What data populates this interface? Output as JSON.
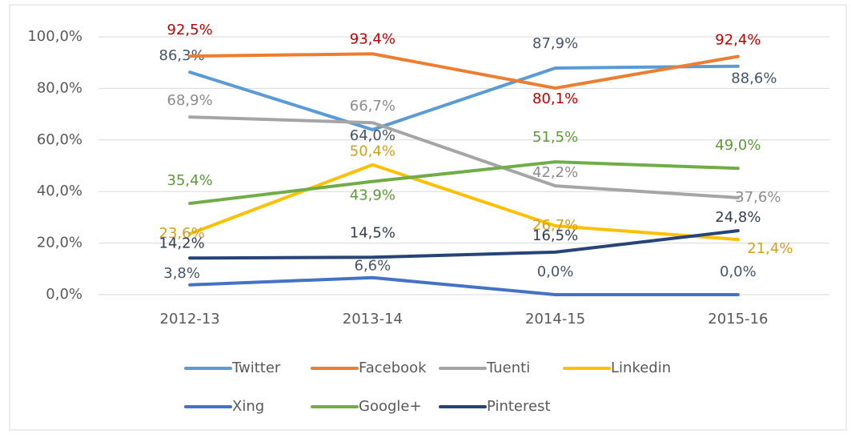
{
  "chart_data": {
    "type": "line",
    "categories": [
      "2012-13",
      "2013-14",
      "2014-15",
      "2015-16"
    ],
    "ylim": [
      0,
      100
    ],
    "yticks": [
      {
        "value": 0,
        "label": "0,0%"
      },
      {
        "value": 20,
        "label": "20,0%"
      },
      {
        "value": 40,
        "label": "40,0%"
      },
      {
        "value": 60,
        "label": "60,0%"
      },
      {
        "value": 80,
        "label": "80,0%"
      },
      {
        "value": 100,
        "label": "100,0%"
      }
    ],
    "grid": true,
    "legend": "bottom",
    "series": [
      {
        "name": "Twitter",
        "color": "#5b9bd5",
        "label_color": "#44546a",
        "values": [
          86.3,
          64.0,
          87.9,
          88.6
        ],
        "value_labels": [
          "86,3%",
          "64,0%",
          "87,9%",
          "88,6%"
        ]
      },
      {
        "name": "Facebook",
        "color": "#ed7d31",
        "label_color": "#c00000",
        "values": [
          92.5,
          93.4,
          80.1,
          92.4
        ],
        "value_labels": [
          "92,5%",
          "93,4%",
          "80,1%",
          "92,4%"
        ]
      },
      {
        "name": "Tuenti",
        "color": "#a5a5a5",
        "label_color": "#8c8c8c",
        "values": [
          68.9,
          66.7,
          42.2,
          37.6
        ],
        "value_labels": [
          "68,9%",
          "66,7%",
          "42,2%",
          "37,6%"
        ]
      },
      {
        "name": "Linkedin",
        "color": "#ffc000",
        "label_color": "#d4a017",
        "values": [
          23.6,
          50.4,
          26.7,
          21.4
        ],
        "value_labels": [
          "23,6%",
          "50,4%",
          "26,7%",
          "21,4%"
        ]
      },
      {
        "name": "Xing",
        "color": "#4472c4",
        "label_color": "#44546a",
        "values": [
          3.8,
          6.6,
          0.0,
          0.0
        ],
        "value_labels": [
          "3,8%",
          "6,6%",
          "0,0%",
          "0,0%"
        ]
      },
      {
        "name": "Google+",
        "color": "#70ad47",
        "label_color": "#5e9a3a",
        "values": [
          35.4,
          43.9,
          51.5,
          49.0
        ],
        "value_labels": [
          "35,4%",
          "43,9%",
          "51,5%",
          "49,0%"
        ]
      },
      {
        "name": "Pinterest",
        "color": "#264478",
        "label_color": "#333f50",
        "values": [
          14.2,
          14.5,
          16.5,
          24.8
        ],
        "value_labels": [
          "14,2%",
          "14,5%",
          "16,5%",
          "24,8%"
        ]
      }
    ]
  }
}
